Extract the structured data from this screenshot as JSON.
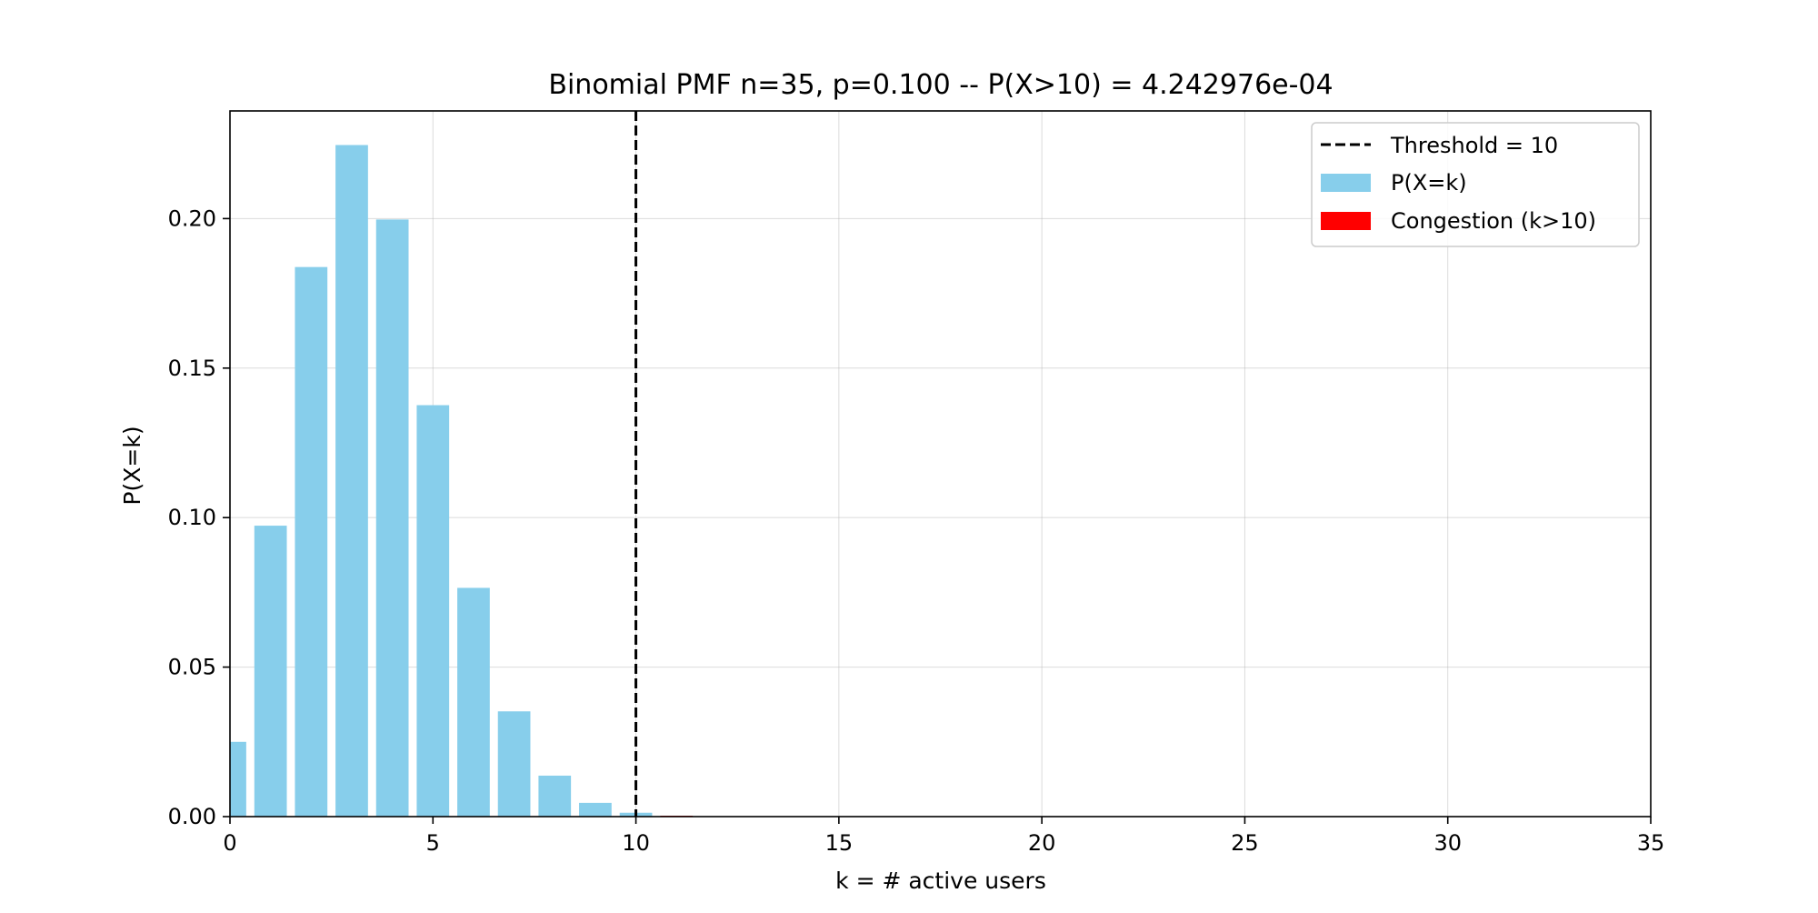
{
  "chart_data": {
    "type": "bar",
    "title": "Binomial PMF n=35, p=0.100  --  P(X>10) = 4.242976e-04",
    "xlabel": "k = # active users",
    "ylabel": "P(X=k)",
    "xlim": [
      0,
      35
    ],
    "ylim": [
      0,
      0.236
    ],
    "xticks": [
      0,
      5,
      10,
      15,
      20,
      25,
      30,
      35
    ],
    "xtick_labels": [
      "0",
      "5",
      "10",
      "15",
      "20",
      "25",
      "30",
      "35"
    ],
    "yticks": [
      0,
      0.05,
      0.1,
      0.15,
      0.2
    ],
    "ytick_labels": [
      "0.00",
      "0.05",
      "0.10",
      "0.15",
      "0.20"
    ],
    "grid": true,
    "legend_position": "top-right",
    "threshold": 10,
    "bar_width": 0.8,
    "colors": {
      "pmf": "#87ceeb",
      "congestion": "#ff0000",
      "threshold_line": "#000000"
    },
    "legend": [
      {
        "label": "Threshold = 10",
        "kind": "dashed-line",
        "color": "#000000"
      },
      {
        "label": "P(X=k)",
        "kind": "patch",
        "color": "#87ceeb"
      },
      {
        "label": "Congestion (k>10)",
        "kind": "patch",
        "color": "#ff0000"
      }
    ],
    "x": [
      0,
      1,
      2,
      3,
      4,
      5,
      6,
      7,
      8,
      9,
      10,
      11,
      12,
      13,
      14,
      15,
      16,
      17,
      18,
      19,
      20,
      21,
      22,
      23,
      24,
      25,
      26,
      27,
      28,
      29,
      30,
      31,
      32,
      33,
      34,
      35
    ],
    "series": [
      {
        "name": "P(X=k)",
        "values": [
          0.025,
          0.0973,
          0.1838,
          0.2246,
          0.1997,
          0.1376,
          0.0765,
          0.0352,
          0.0137,
          0.0046,
          0.0013,
          0.0003,
          0.0001,
          0.0,
          0.0,
          0.0,
          0.0,
          0.0,
          0.0,
          0.0,
          0.0,
          0.0,
          0.0,
          0.0,
          0.0,
          0.0,
          0.0,
          0.0,
          0.0,
          0.0,
          0.0,
          0.0,
          0.0,
          0.0,
          0.0,
          0.0
        ]
      }
    ]
  }
}
